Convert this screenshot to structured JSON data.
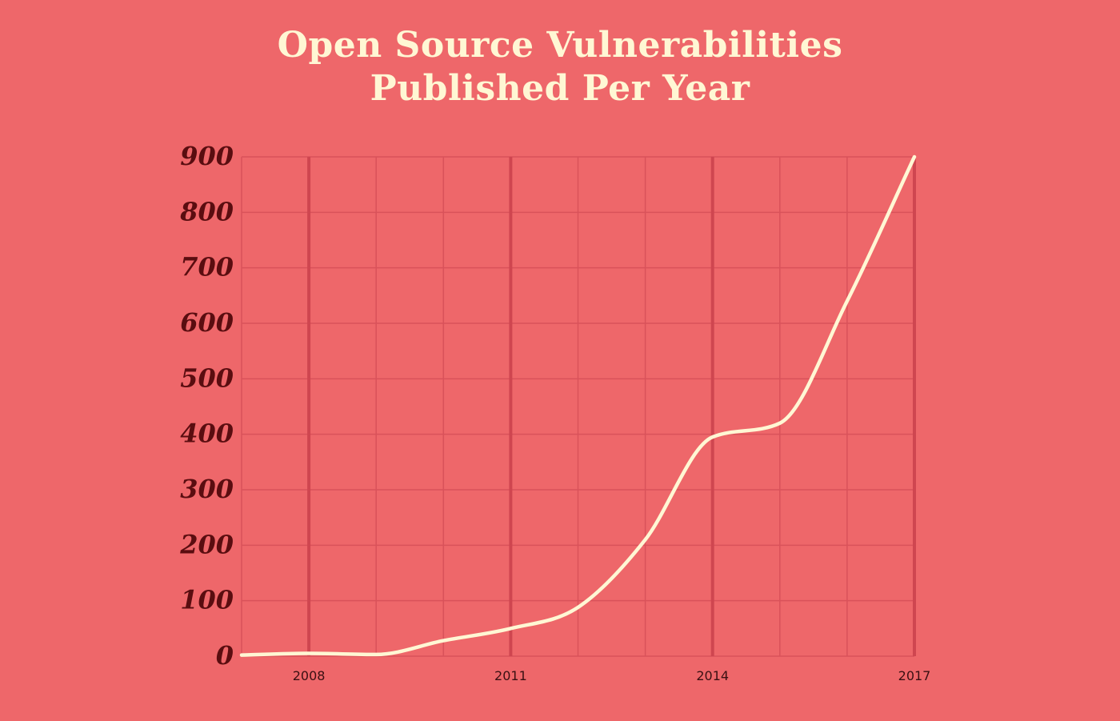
{
  "chart_data": {
    "type": "line",
    "title_lines": [
      "Open Source Vulnerabilities",
      "Published Per Year"
    ],
    "x_tick_labels": [
      "2008",
      "2011",
      "2014",
      "2017"
    ],
    "y_tick_labels": [
      "0",
      "100",
      "200",
      "300",
      "400",
      "500",
      "600",
      "700",
      "800",
      "900"
    ],
    "xlim": [
      2007,
      2017
    ],
    "ylim": [
      0,
      900
    ],
    "grid": true,
    "series": [
      {
        "x": [
          2007,
          2008,
          2009,
          2010,
          2011,
          2012,
          2013,
          2014,
          2015,
          2016,
          2017
        ],
        "values": [
          2,
          5,
          3,
          28,
          50,
          88,
          210,
          395,
          420,
          640,
          900
        ]
      }
    ],
    "colors": {
      "background": "#ee676a",
      "line": "#fff7d4",
      "grid_minor": "#d9525a",
      "grid_major": "#cf4650",
      "title": "#fff7d4",
      "y_tick": "#5a0d10",
      "x_tick": "#3a1012"
    }
  }
}
